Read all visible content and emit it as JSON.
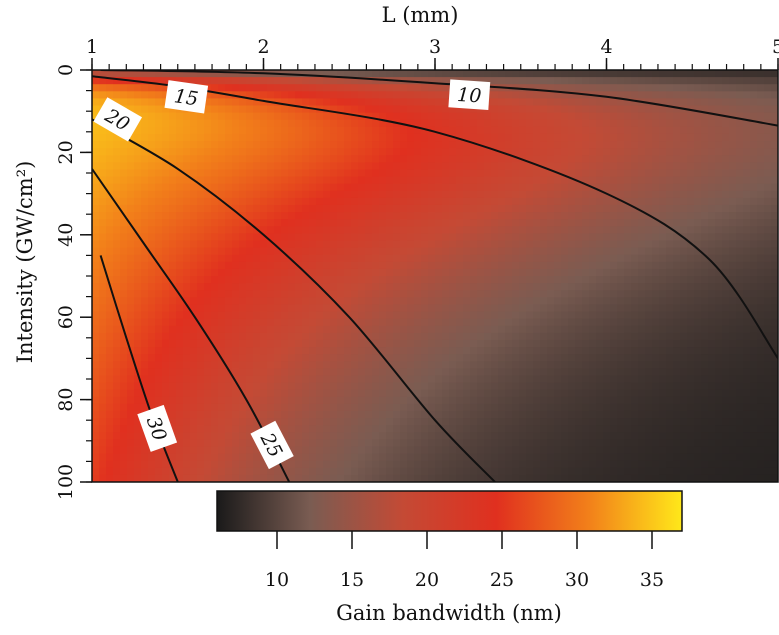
{
  "chart_data": {
    "type": "heatmap",
    "title": "",
    "xlabel": "L (mm)",
    "ylabel": "Intensity  (GW/cm²)",
    "xlim": [
      1,
      5
    ],
    "ylim": [
      0,
      100
    ],
    "x_ticks": [
      "1",
      "2",
      "3",
      "4",
      "5"
    ],
    "y_ticks": [
      "0",
      "20",
      "40",
      "60",
      "80",
      "100"
    ],
    "x_axis_position": "top",
    "y_axis_inverted": true,
    "grid": false,
    "colorbar": {
      "label": "Gain bandwidth (nm)",
      "range": [
        6,
        37
      ],
      "ticks": [
        "10",
        "15",
        "20",
        "25",
        "30",
        "35"
      ],
      "colormap": [
        "#1a1a1a",
        "#7a5c52",
        "#c44a35",
        "#e0301f",
        "#f2801a",
        "#ffe81a"
      ],
      "position": "bottom"
    },
    "contours": [
      {
        "level": 10,
        "label": "10",
        "points": [
          [
            1.05,
            0
          ],
          [
            2.0,
            0.8
          ],
          [
            3.0,
            3.2
          ],
          [
            4.0,
            6.5
          ],
          [
            5.0,
            13.5
          ]
        ],
        "label_at": [
          3.2,
          6
        ]
      },
      {
        "level": 15,
        "label": "15",
        "points": [
          [
            1.0,
            1.5
          ],
          [
            1.5,
            4.0
          ],
          [
            2.0,
            7.5
          ],
          [
            3.0,
            15.0
          ],
          [
            4.0,
            30.0
          ],
          [
            4.6,
            46.0
          ],
          [
            5.0,
            70.0
          ]
        ],
        "label_at": [
          1.55,
          6.5
        ]
      },
      {
        "level": 20,
        "label": "20",
        "points": [
          [
            1.0,
            12.0
          ],
          [
            1.5,
            24.0
          ],
          [
            2.0,
            40.0
          ],
          [
            2.5,
            60.0
          ],
          [
            3.0,
            85.0
          ],
          [
            3.35,
            100.0
          ]
        ],
        "label_at": [
          1.15,
          12
        ]
      },
      {
        "level": 25,
        "label": "25",
        "points": [
          [
            1.0,
            24.0
          ],
          [
            1.3,
            42.0
          ],
          [
            1.6,
            60.0
          ],
          [
            1.9,
            80.0
          ],
          [
            2.15,
            100.0
          ]
        ],
        "label_at": [
          2.05,
          91
        ]
      },
      {
        "level": 30,
        "label": "30",
        "points": [
          [
            1.05,
            45.0
          ],
          [
            1.2,
            65.0
          ],
          [
            1.35,
            84.0
          ],
          [
            1.5,
            100.0
          ]
        ],
        "label_at": [
          1.38,
          87
        ]
      }
    ]
  }
}
